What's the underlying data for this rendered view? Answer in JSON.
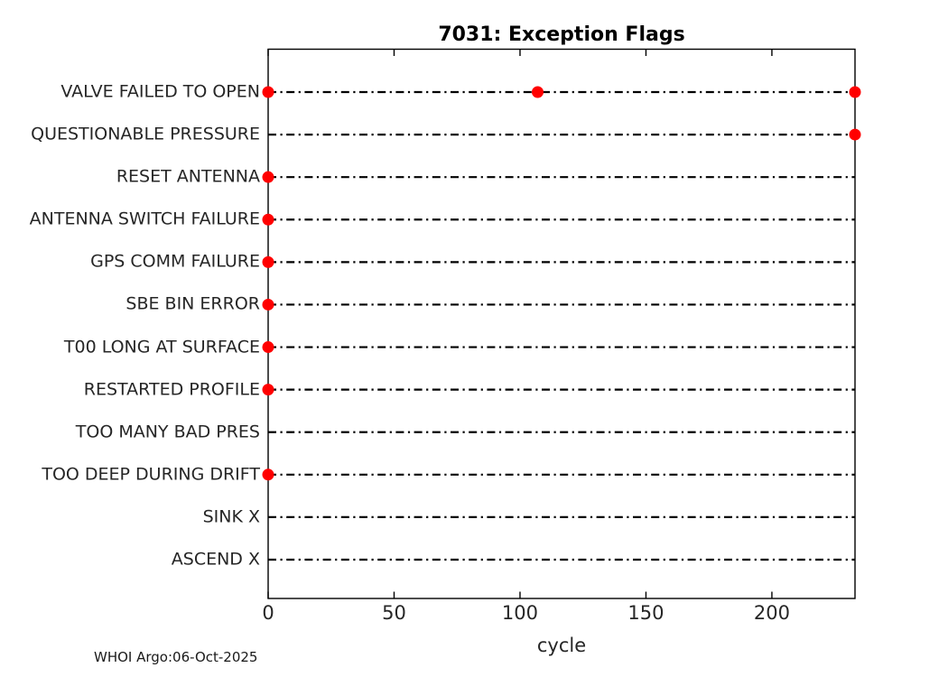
{
  "chart_data": {
    "type": "scatter",
    "title": "7031: Exception Flags",
    "xlabel": "cycle",
    "footer": "WHOI Argo:06-Oct-2025",
    "xlim": [
      0,
      233
    ],
    "xticks": [
      0,
      50,
      100,
      150,
      200
    ],
    "grid": "horizontal dash-dot line per category",
    "legend": "none",
    "categories": [
      "VALVE FAILED TO OPEN",
      "QUESTIONABLE PRESSURE",
      "RESET ANTENNA",
      "ANTENNA SWITCH FAILURE",
      "GPS COMM FAILURE",
      "SBE BIN ERROR",
      "T00 LONG AT SURFACE",
      "RESTARTED PROFILE",
      "TOO MANY BAD PRES",
      "TOO DEEP DURING DRIFT",
      "SINK X",
      "ASCEND X"
    ],
    "series": [
      {
        "name": "VALVE FAILED TO OPEN",
        "cycles": [
          0,
          107,
          233
        ]
      },
      {
        "name": "QUESTIONABLE PRESSURE",
        "cycles": [
          233
        ]
      },
      {
        "name": "RESET ANTENNA",
        "cycles": [
          0
        ]
      },
      {
        "name": "ANTENNA SWITCH FAILURE",
        "cycles": [
          0
        ]
      },
      {
        "name": "GPS COMM FAILURE",
        "cycles": [
          0
        ]
      },
      {
        "name": "SBE BIN ERROR",
        "cycles": [
          0
        ]
      },
      {
        "name": "T00 LONG AT SURFACE",
        "cycles": [
          0
        ]
      },
      {
        "name": "RESTARTED PROFILE",
        "cycles": [
          0
        ]
      },
      {
        "name": "TOO MANY BAD PRES",
        "cycles": []
      },
      {
        "name": "TOO DEEP DURING DRIFT",
        "cycles": [
          0
        ]
      },
      {
        "name": "SINK X",
        "cycles": []
      },
      {
        "name": "ASCEND X",
        "cycles": []
      }
    ],
    "colors": {
      "marker": "#ff0000",
      "line": "#000000",
      "axis": "#000000",
      "tick_text": "#262626",
      "title_text": "#000000",
      "background": "#ffffff"
    },
    "marker": {
      "shape": "circle",
      "radius_px": 6
    }
  }
}
